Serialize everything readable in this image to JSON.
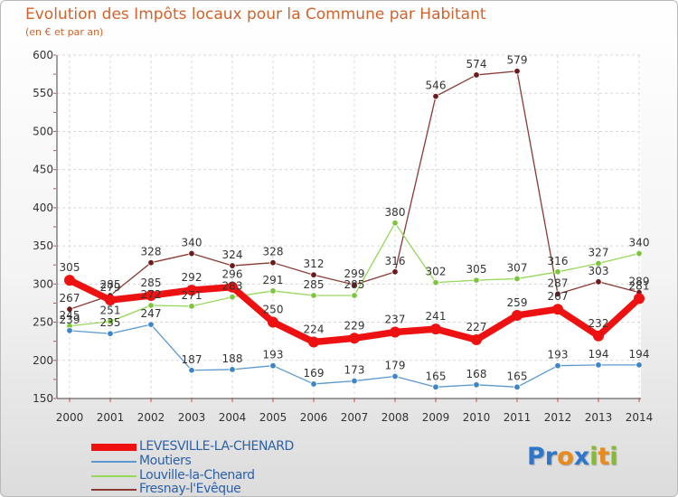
{
  "title": "Evolution des Impôts locaux pour la Commune par Habitant",
  "subtitle": "(en € et par an)",
  "logo": {
    "letters": [
      "P",
      "r",
      "o",
      "x",
      "i",
      "t",
      "i"
    ],
    "colors": [
      "#2e77c8",
      "#2e77c8",
      "#e88b1f",
      "#2e77c8",
      "#88b83a",
      "#e88b1f",
      "#88b83a"
    ]
  },
  "chart_data": {
    "type": "line",
    "title": "Evolution des Impôts locaux pour la Commune par Habitant",
    "subtitle": "(en € et par an)",
    "xlabel": "",
    "ylabel": "",
    "ylim": [
      150,
      600
    ],
    "yticks": [
      150,
      200,
      250,
      300,
      350,
      400,
      450,
      500,
      550,
      600
    ],
    "x": [
      "2000",
      "2001",
      "2002",
      "2003",
      "2004",
      "2005",
      "2006",
      "2007",
      "2008",
      "2009",
      "2010",
      "2011",
      "2012",
      "2013",
      "2014"
    ],
    "grid": true,
    "legend": "bottom-left",
    "series": [
      {
        "name": "Fresnay-l'Evêque",
        "color": "#8a3a32",
        "marker": "#6e1a1a",
        "width": 1.3,
        "r": 3.3,
        "values": [
          267,
          285,
          328,
          340,
          324,
          328,
          312,
          299,
          316,
          546,
          574,
          579,
          287,
          303,
          289
        ],
        "labels": [
          "267",
          "285",
          "328",
          "340",
          "324",
          "328",
          "312",
          "299",
          "316",
          "546",
          "574",
          "579",
          "287",
          "303",
          "289"
        ]
      },
      {
        "name": "Louville-la-Chenard",
        "color": "#96d85a",
        "marker": "#7cc63e",
        "width": 1.3,
        "r": 3.3,
        "values": [
          245,
          251,
          272,
          271,
          283,
          291,
          285,
          285,
          380,
          302,
          305,
          307,
          316,
          327,
          340
        ],
        "labels": [
          "245",
          "251",
          "272",
          "271",
          "283",
          "291",
          "285",
          "285",
          "380",
          "302",
          "305",
          "307",
          "316",
          "327",
          "340"
        ]
      },
      {
        "name": "Moutiers",
        "color": "#5b98d0",
        "marker": "#3d85c6",
        "width": 1.3,
        "r": 3.3,
        "values": [
          239,
          235,
          247,
          187,
          188,
          193,
          169,
          173,
          179,
          165,
          168,
          165,
          193,
          194,
          194
        ],
        "labels": [
          "239",
          "235",
          "247",
          "187",
          "188",
          "193",
          "169",
          "173",
          "179",
          "165",
          "168",
          "165",
          "193",
          "194",
          "194"
        ]
      },
      {
        "name": "LEVESVILLE-LA-CHENARD",
        "color": "#ee1111",
        "marker": "#ee1111",
        "width": 7.5,
        "r": 6,
        "values": [
          305,
          279,
          285,
          292,
          296,
          250,
          224,
          229,
          237,
          241,
          227,
          259,
          267,
          232,
          281
        ],
        "labels": [
          "305",
          "279",
          "285",
          "292",
          "296",
          "250",
          "224",
          "229",
          "237",
          "241",
          "227",
          "259",
          "267",
          "232",
          "281"
        ]
      }
    ]
  },
  "legend": [
    {
      "name": "LEVESVILLE-LA-CHENARD",
      "color": "#ee1111"
    },
    {
      "name": "Moutiers",
      "color": "#5b98d0"
    },
    {
      "name": "Louville-la-Chenard",
      "color": "#96d85a"
    },
    {
      "name": "Fresnay-l'Evêque",
      "color": "#8a3a32"
    }
  ]
}
